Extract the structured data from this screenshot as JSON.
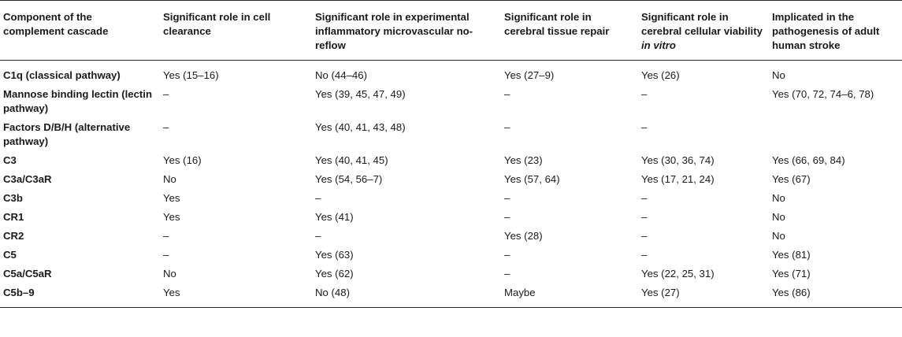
{
  "table": {
    "headers": [
      {
        "text": "Component of the complement cascade"
      },
      {
        "text": "Significant role in cell clearance"
      },
      {
        "text": "Significant role in experimental inflammatory microvascular no-reflow"
      },
      {
        "text": "Significant role in cerebral tissue repair"
      },
      {
        "text": "Significant role in cerebral cellular viability ",
        "italic": "in vitro"
      },
      {
        "text": "Implicated in the pathogenesis of adult human stroke"
      }
    ],
    "rows": [
      [
        "C1q (classical pathway)",
        "Yes (15–16)",
        "No (44–46)",
        "Yes (27–9)",
        "Yes (26)",
        "No"
      ],
      [
        "Mannose binding lectin (lectin pathway)",
        "–",
        "Yes (39, 45, 47, 49)",
        "–",
        "–",
        "Yes (70, 72, 74–6, 78)"
      ],
      [
        "Factors D/B/H (alternative pathway)",
        "–",
        "Yes (40, 41, 43, 48)",
        "–",
        "–",
        ""
      ],
      [
        "C3",
        "Yes (16)",
        "Yes (40, 41, 45)",
        "Yes (23)",
        "Yes (30, 36, 74)",
        "Yes (66, 69, 84)"
      ],
      [
        "C3a/C3aR",
        "No",
        "Yes (54, 56–7)",
        "Yes (57, 64)",
        "Yes (17, 21, 24)",
        "Yes (67)"
      ],
      [
        "C3b",
        "Yes",
        "–",
        "–",
        "–",
        "No"
      ],
      [
        "CR1",
        "Yes",
        "Yes (41)",
        "–",
        "–",
        "No"
      ],
      [
        "CR2",
        "–",
        "–",
        "Yes (28)",
        "–",
        "No"
      ],
      [
        "C5",
        "–",
        "Yes (63)",
        "–",
        "–",
        "Yes (81)"
      ],
      [
        "C5a/C5aR",
        "No",
        "Yes (62)",
        "–",
        "Yes (22, 25, 31)",
        "Yes (71)"
      ],
      [
        "C5b–9",
        "Yes",
        "No (48)",
        "Maybe",
        "Yes (27)",
        "Yes (86)"
      ]
    ]
  }
}
